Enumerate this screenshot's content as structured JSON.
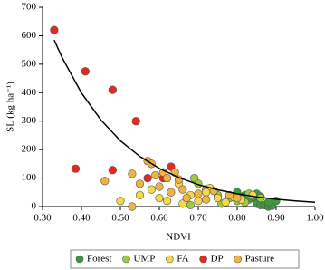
{
  "chart_data": {
    "type": "scatter",
    "x_label": "NDVI",
    "y_label": "SL (kg ha⁻¹)",
    "xlim": [
      0.3,
      1.0
    ],
    "xticks": [
      {
        "value": 0.3,
        "label": "0.30"
      },
      {
        "value": 0.4,
        "label": "0.40"
      },
      {
        "value": 0.5,
        "label": "0.50"
      },
      {
        "value": 0.6,
        "label": "0.60"
      },
      {
        "value": 0.7,
        "label": "0.70"
      },
      {
        "value": 0.8,
        "label": "0.80"
      },
      {
        "value": 0.9,
        "label": "0.90"
      },
      {
        "value": 1.0,
        "label": "1.00"
      }
    ],
    "ylim": [
      0,
      700
    ],
    "yticks": [
      0,
      100,
      200,
      300,
      400,
      500,
      600,
      700
    ],
    "legend": "bottom",
    "series": [
      {
        "name": "Forest",
        "color": "#3c9a3c",
        "x": [
          0.8,
          0.82,
          0.84,
          0.85,
          0.86,
          0.87,
          0.88,
          0.89,
          0.9,
          0.86,
          0.88,
          0.85,
          0.83
        ],
        "values": [
          50,
          40,
          30,
          10,
          5,
          5,
          0,
          3,
          20,
          35,
          15,
          45,
          25
        ]
      },
      {
        "name": "UMP",
        "color": "#9ccc3c",
        "x": [
          0.69,
          0.7,
          0.72,
          0.75,
          0.78,
          0.8,
          0.83,
          0.68,
          0.76,
          0.82,
          0.86
        ],
        "values": [
          100,
          80,
          60,
          40,
          30,
          20,
          45,
          5,
          10,
          15,
          30
        ]
      },
      {
        "name": "FA",
        "color": "#f5d84a",
        "x": [
          0.5,
          0.55,
          0.58,
          0.6,
          0.62,
          0.65,
          0.68,
          0.7,
          0.73,
          0.75,
          0.77,
          0.79,
          0.81,
          0.84,
          0.66,
          0.72
        ],
        "values": [
          20,
          40,
          60,
          30,
          20,
          80,
          40,
          20,
          65,
          30,
          15,
          35,
          25,
          40,
          10,
          50
        ]
      },
      {
        "name": "DP",
        "color": "#e8281e",
        "x": [
          0.33,
          0.41,
          0.48,
          0.54,
          0.385,
          0.48,
          0.63,
          0.61,
          0.57
        ],
        "values": [
          620,
          475,
          410,
          300,
          133,
          128,
          140,
          100,
          100
        ]
      },
      {
        "name": "Pasture",
        "color": "#f2b240",
        "x": [
          0.46,
          0.53,
          0.55,
          0.57,
          0.58,
          0.59,
          0.6,
          0.61,
          0.62,
          0.63,
          0.64,
          0.65,
          0.66,
          0.67,
          0.7,
          0.72,
          0.74,
          0.78,
          0.8,
          0.53
        ],
        "values": [
          90,
          115,
          80,
          160,
          150,
          110,
          70,
          120,
          100,
          50,
          120,
          95,
          60,
          30,
          45,
          25,
          55,
          40,
          30,
          0
        ]
      }
    ],
    "trend": {
      "color": "#000000",
      "x": [
        0.33,
        0.35,
        0.4,
        0.45,
        0.5,
        0.55,
        0.6,
        0.65,
        0.7,
        0.75,
        0.8,
        0.85,
        0.9,
        0.95,
        1.0
      ],
      "values": [
        585,
        524,
        399,
        304,
        231,
        176,
        134,
        102,
        77,
        59,
        45,
        34,
        26,
        20,
        15
      ]
    }
  }
}
